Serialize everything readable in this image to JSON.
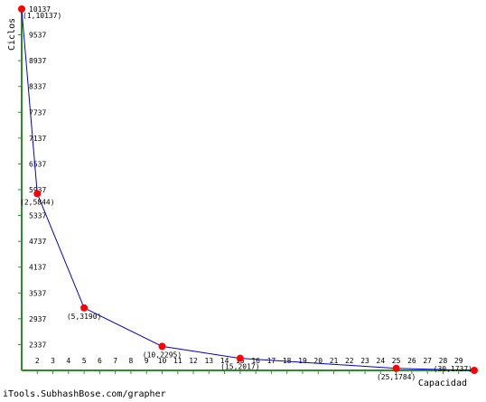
{
  "chart_data": {
    "type": "line",
    "xlabel": "Capacidad",
    "ylabel": "Ciclos",
    "xlim": [
      1,
      30
    ],
    "ylim": [
      1737,
      10137
    ],
    "x_ticks": [
      2,
      3,
      4,
      5,
      6,
      7,
      8,
      9,
      10,
      11,
      12,
      13,
      14,
      15,
      16,
      17,
      18,
      19,
      20,
      21,
      22,
      23,
      24,
      25,
      26,
      27,
      28,
      29
    ],
    "y_ticks": [
      2337,
      2937,
      3537,
      4137,
      4737,
      5337,
      5937,
      6537,
      7137,
      7737,
      8337,
      8937,
      9537,
      10137
    ],
    "points": [
      {
        "x": 1,
        "y": 10137,
        "label": "(1,10137)"
      },
      {
        "x": 2,
        "y": 5844,
        "label": "(2,5844)"
      },
      {
        "x": 5,
        "y": 3190,
        "label": "(5,3190)"
      },
      {
        "x": 10,
        "y": 2295,
        "label": "(10,2295)"
      },
      {
        "x": 15,
        "y": 2017,
        "label": "(15,2017)"
      },
      {
        "x": 25,
        "y": 1784,
        "label": "(25,1784)"
      },
      {
        "x": 30,
        "y": 1737,
        "label": "(30,1737)"
      }
    ],
    "grid": false,
    "colors": {
      "axis": "#2e8b2e",
      "line": "#0000cc",
      "point": "#ff0000"
    }
  },
  "footer": "iTools.SubhashBose.com/grapher"
}
